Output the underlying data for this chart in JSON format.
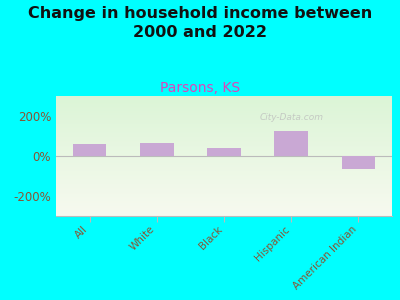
{
  "title": "Change in household income between\n2000 and 2022",
  "subtitle": "Parsons, KS",
  "categories": [
    "All",
    "White",
    "Black",
    "Hispanic",
    "American Indian"
  ],
  "values": [
    60,
    65,
    42,
    125,
    -65
  ],
  "bar_color": "#c9a8d4",
  "title_fontsize": 11.5,
  "subtitle_fontsize": 10,
  "subtitle_color": "#dd44bb",
  "title_color": "#111111",
  "background_color": "#00ffff",
  "tick_color": "#885533",
  "yticks": [
    -200,
    0,
    200
  ],
  "ytick_labels": [
    "-200%",
    "0%",
    "200%"
  ],
  "ylim": [
    -300,
    300
  ],
  "watermark": "City-Data.com"
}
